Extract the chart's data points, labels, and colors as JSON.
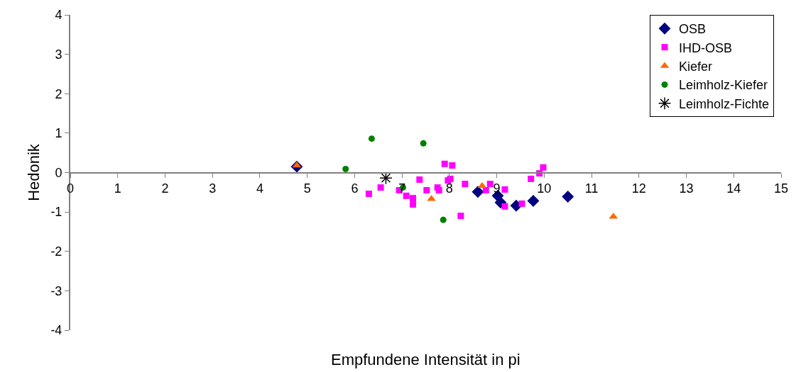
{
  "chart_data": {
    "type": "scatter",
    "xlabel": "Empfundene Intensität in pi",
    "ylabel": "Hedonik",
    "xlim": [
      0,
      15
    ],
    "xticks": [
      0,
      1,
      2,
      3,
      4,
      5,
      6,
      7,
      8,
      9,
      10,
      11,
      12,
      13,
      14,
      15
    ],
    "ylim": [
      -4,
      4
    ],
    "yticks": [
      -4,
      -3,
      -2,
      -1,
      0,
      1,
      2,
      3,
      4
    ],
    "grid": false,
    "legend": "top right",
    "series": [
      {
        "name": "OSB",
        "color": "#000080",
        "marker": "diamond",
        "x": [
          4.78,
          8.6,
          9.02,
          9.08,
          9.41,
          9.77,
          10.5
        ],
        "values": [
          0.15,
          -0.49,
          -0.59,
          -0.76,
          -0.84,
          -0.72,
          -0.61
        ]
      },
      {
        "name": "IHD-OSB",
        "color": "#ff00ff",
        "marker": "square",
        "x": [
          6.3,
          6.55,
          6.94,
          7.09,
          7.23,
          7.23,
          7.37,
          7.52,
          7.75,
          7.78,
          7.9,
          8.06,
          7.97,
          8.02,
          8.33,
          8.24,
          8.86,
          8.77,
          9.17,
          9.17,
          9.53,
          9.72,
          9.9,
          9.98
        ],
        "values": [
          -0.54,
          -0.38,
          -0.45,
          -0.59,
          -0.65,
          -0.81,
          -0.18,
          -0.45,
          -0.38,
          -0.45,
          0.22,
          0.18,
          -0.2,
          -0.16,
          -0.29,
          -1.1,
          -0.29,
          -0.45,
          -0.43,
          -0.86,
          -0.79,
          -0.16,
          -0.02,
          0.13
        ]
      },
      {
        "name": "Kiefer",
        "color": "#ff6600",
        "marker": "triangle",
        "x": [
          4.78,
          7.62,
          8.69,
          11.46
        ],
        "values": [
          0.18,
          -0.67,
          -0.34,
          -1.12
        ]
      },
      {
        "name": "Leimholz-Kiefer",
        "color": "#008000",
        "marker": "circle",
        "x": [
          6.36,
          7.45,
          5.81,
          7.02,
          7.87
        ],
        "values": [
          0.86,
          0.74,
          0.09,
          -0.38,
          -1.2
        ]
      },
      {
        "name": "Leimholz-Fichte",
        "color": "#000000",
        "marker": "cross",
        "x": [
          6.66
        ],
        "values": [
          -0.14
        ]
      }
    ]
  }
}
